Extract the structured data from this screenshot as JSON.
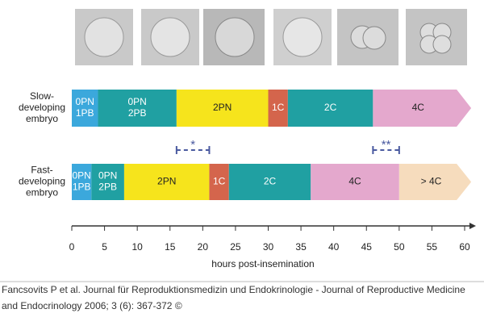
{
  "chart_data": {
    "type": "timeline",
    "xlim": [
      0,
      60
    ],
    "xticks": [
      0,
      5,
      10,
      15,
      20,
      25,
      30,
      35,
      40,
      45,
      50,
      55,
      60
    ],
    "xlabel": "hours post-insemination",
    "rows": [
      {
        "name": [
          "Slow-",
          "developing",
          "embryo"
        ],
        "segments": [
          {
            "label": [
              "0PN",
              "1PB"
            ],
            "start": 0,
            "end": 4,
            "color": "#3ba8dc",
            "label_color": "#ffffff"
          },
          {
            "label": [
              "0PN",
              "2PB"
            ],
            "start": 4,
            "end": 16,
            "color": "#20a0a2",
            "label_color": "#ffffff"
          },
          {
            "label": [
              "2PN"
            ],
            "start": 16,
            "end": 30,
            "color": "#f6e41c",
            "label_color": "#222222"
          },
          {
            "label": [
              "1C"
            ],
            "start": 30,
            "end": 33,
            "color": "#d4654c",
            "label_color": "#ffffff"
          },
          {
            "label": [
              "2C"
            ],
            "start": 33,
            "end": 46,
            "color": "#20a0a2",
            "label_color": "#ffffff"
          },
          {
            "label": [
              "4C"
            ],
            "start": 46,
            "end": 61,
            "color": "#e4a8cd",
            "label_color": "#222222"
          }
        ]
      },
      {
        "name": [
          "Fast-",
          "developing",
          "embryo"
        ],
        "segments": [
          {
            "label": [
              "0PN",
              "1PB"
            ],
            "start": 0,
            "end": 3,
            "color": "#3ba8dc",
            "label_color": "#ffffff"
          },
          {
            "label": [
              "0PN",
              "2PB"
            ],
            "start": 3,
            "end": 8,
            "color": "#20a0a2",
            "label_color": "#ffffff"
          },
          {
            "label": [
              "2PN"
            ],
            "start": 8,
            "end": 21,
            "color": "#f6e41c",
            "label_color": "#222222"
          },
          {
            "label": [
              "1C"
            ],
            "start": 21,
            "end": 24,
            "color": "#d4654c",
            "label_color": "#ffffff"
          },
          {
            "label": [
              "2C"
            ],
            "start": 24,
            "end": 36.5,
            "color": "#20a0a2",
            "label_color": "#ffffff"
          },
          {
            "label": [
              "4C"
            ],
            "start": 36.5,
            "end": 50,
            "color": "#e4a8cd",
            "label_color": "#222222"
          },
          {
            "label": [
              "> 4C"
            ],
            "start": 50,
            "end": 61,
            "color": "#f6dcbd",
            "label_color": "#222222"
          }
        ]
      }
    ],
    "brackets": [
      {
        "label": "*",
        "start": 16,
        "end": 21
      },
      {
        "label": "**",
        "start": 46,
        "end": 50
      }
    ],
    "bracket_color": "#4a5aa0",
    "source": [
      "Fancsovits P et al. Journal für Reproduktionsmedizin und Endokrinologie - Journal of Reproductive Medicine",
      "and Endocrinology 2006; 3 (6): 367-372 ©"
    ]
  }
}
